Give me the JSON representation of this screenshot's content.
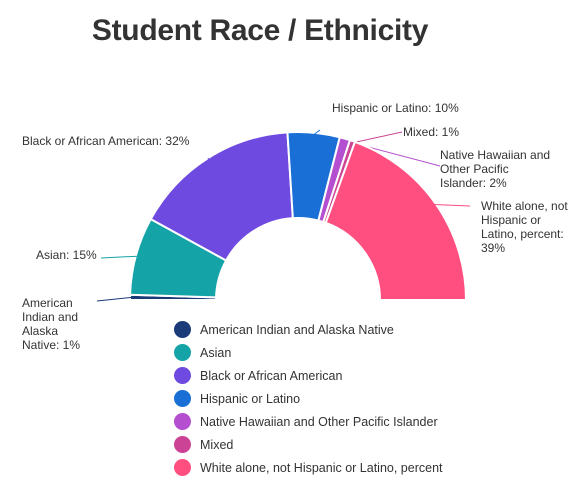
{
  "chart_data": {
    "type": "pie",
    "variant": "half-donut",
    "title": "Student Race / Ethnicity",
    "legend_position": "bottom-center",
    "slices": [
      {
        "name": "American Indian and Alaska Native",
        "label": "American Indian and Alaska Native: 1%",
        "value": 1,
        "color": "#1a3a78"
      },
      {
        "name": "Asian",
        "label": "Asian: 15%",
        "value": 15,
        "color": "#14a3a6"
      },
      {
        "name": "Black or African American",
        "label": "Black or African American: 32%",
        "value": 32,
        "color": "#6e4ae0"
      },
      {
        "name": "Hispanic or Latino",
        "label": "Hispanic or Latino: 10%",
        "value": 10,
        "color": "#1a6fd6"
      },
      {
        "name": "Native Hawaiian and Other Pacific Islander",
        "label": "Native Hawaiian and Other Pacific Islander: 2%",
        "value": 2,
        "color": "#b44fcf"
      },
      {
        "name": "Mixed",
        "label": "Mixed: 1%",
        "value": 1,
        "color": "#cc4295"
      },
      {
        "name": "White alone, not Hispanic or Latino, percent",
        "label": "White alone, not Hispanic or Latino, percent: 39%",
        "value": 39,
        "color": "#ff4f80"
      }
    ]
  }
}
